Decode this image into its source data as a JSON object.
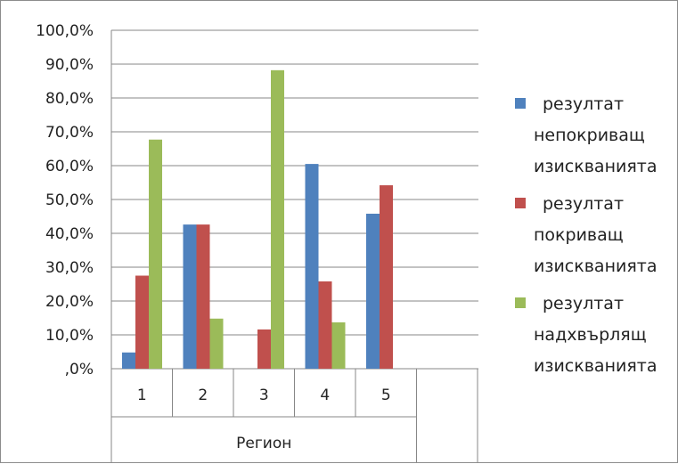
{
  "chart_data": {
    "type": "bar",
    "categories": [
      "1",
      "2",
      "3",
      "4",
      "5"
    ],
    "xlabel": "Регион",
    "ylabel": "",
    "ylim": [
      0,
      100
    ],
    "y_ticks": [
      "100,0%",
      "90,0%",
      "80,0%",
      "70,0%",
      "60,0%",
      "50,0%",
      "40,0%",
      "30,0%",
      "20,0%",
      "10,0%",
      ",0%"
    ],
    "grid": true,
    "legend_position": "right",
    "series": [
      {
        "name": "резултат непокриващ изискванията",
        "name_lines": [
          "резултат",
          "непокриващ",
          "изискванията"
        ],
        "color": "#4F81BD",
        "values": [
          4.8,
          42.6,
          0,
          60.5,
          45.8
        ]
      },
      {
        "name": "резултат покриващ изискванията",
        "name_lines": [
          "резултат",
          "покриващ",
          "изискванията"
        ],
        "color": "#C0504D",
        "values": [
          27.5,
          42.6,
          11.6,
          25.8,
          54.2
        ]
      },
      {
        "name": "резултат надхвърлящ изискванията",
        "name_lines": [
          "резултат",
          "надхвърлящ",
          "изискванията"
        ],
        "color": "#9BBB59",
        "values": [
          67.7,
          14.8,
          88.2,
          13.7,
          0
        ]
      }
    ]
  }
}
